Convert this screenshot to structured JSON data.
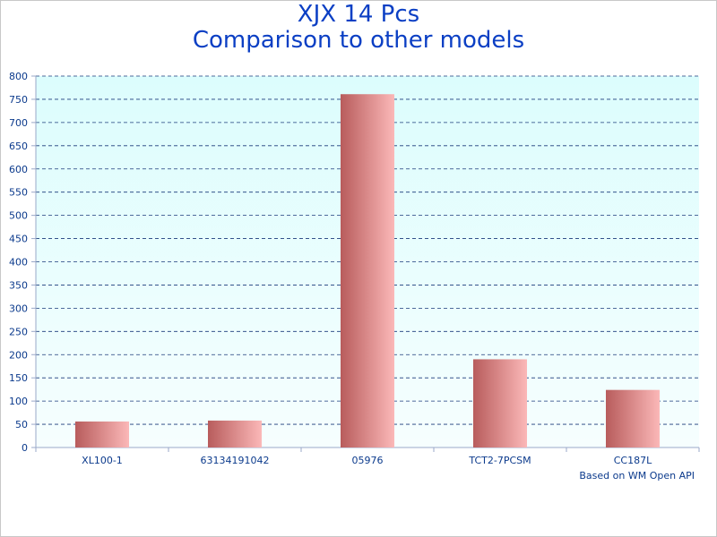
{
  "chart_data": {
    "type": "bar",
    "title": [
      "XJX 14 Pcs",
      "Comparison to other models"
    ],
    "categories": [
      "XL100-1",
      "63134191042",
      "05976",
      "TCT2-7PCSM",
      "CC187L"
    ],
    "values": [
      56,
      58,
      761,
      190,
      124
    ],
    "ylim": [
      0,
      800
    ],
    "yticks": [
      0,
      50,
      100,
      150,
      200,
      250,
      300,
      350,
      400,
      450,
      500,
      550,
      600,
      650,
      700,
      750,
      800
    ],
    "grid": true,
    "xlabel": "",
    "ylabel": "",
    "credit": "Based on WM Open API",
    "colors": {
      "bar_dark": "#b85c5c",
      "bar_light": "#fbb8b8",
      "plot_bg_top": "#dcfdfd",
      "plot_bg_bottom": "#f6fefe",
      "grid": "#1a3a7a",
      "title": "#0b3fc4",
      "text": "#0b3a8c"
    }
  }
}
